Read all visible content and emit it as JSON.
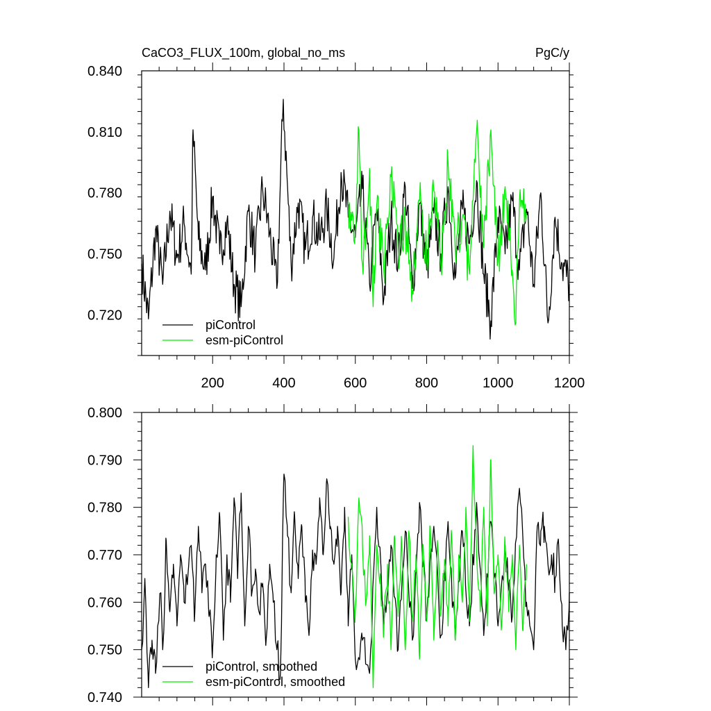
{
  "chart_data": [
    {
      "type": "line",
      "title": "CaCO3_FLUX_100m, global_no_ms",
      "units": "PgC/y",
      "xlim": [
        1,
        1200
      ],
      "ylim": [
        0.7,
        0.84
      ],
      "xticks": [
        200,
        400,
        600,
        800,
        1000,
        1200
      ],
      "xtick_labels": [
        "200",
        "400",
        "600",
        "800",
        "1000",
        "1200"
      ],
      "yticks": [
        0.72,
        0.75,
        0.78,
        0.81,
        0.84
      ],
      "ytick_labels": [
        "0.720",
        "0.750",
        "0.780",
        "0.810",
        "0.840"
      ],
      "legend": "bottom-left",
      "grid": false,
      "series": [
        {
          "name": "piControl",
          "color": "#000000",
          "x": [
            1,
            20,
            40,
            60,
            80,
            100,
            120,
            140,
            145,
            160,
            180,
            200,
            220,
            240,
            260,
            280,
            300,
            320,
            340,
            360,
            380,
            398,
            420,
            440,
            460,
            480,
            500,
            520,
            540,
            560,
            580,
            600,
            620,
            640,
            660,
            680,
            700,
            720,
            740,
            760,
            780,
            800,
            820,
            840,
            860,
            880,
            900,
            920,
            940,
            960,
            980,
            1000,
            1020,
            1040,
            1060,
            1080,
            1100,
            1120,
            1140,
            1160,
            1180,
            1200
          ],
          "y": [
            0.745,
            0.718,
            0.762,
            0.735,
            0.771,
            0.748,
            0.765,
            0.74,
            0.811,
            0.757,
            0.742,
            0.778,
            0.75,
            0.766,
            0.735,
            0.724,
            0.771,
            0.75,
            0.782,
            0.76,
            0.733,
            0.826,
            0.745,
            0.775,
            0.752,
            0.768,
            0.757,
            0.772,
            0.748,
            0.79,
            0.768,
            0.758,
            0.782,
            0.735,
            0.772,
            0.728,
            0.768,
            0.746,
            0.783,
            0.733,
            0.775,
            0.742,
            0.77,
            0.75,
            0.783,
            0.738,
            0.772,
            0.755,
            0.786,
            0.74,
            0.717,
            0.768,
            0.75,
            0.776,
            0.742,
            0.772,
            0.735,
            0.78,
            0.716,
            0.768,
            0.745,
            0.735
          ]
        },
        {
          "name": "esm-piControl",
          "color": "#00ee00",
          "x": [
            580,
            600,
            610,
            620,
            640,
            650,
            660,
            680,
            700,
            720,
            740,
            760,
            780,
            800,
            820,
            840,
            860,
            880,
            900,
            920,
            940,
            960,
            980,
            1000,
            1020,
            1040,
            1050,
            1060,
            1080
          ],
          "y": [
            0.776,
            0.762,
            0.811,
            0.745,
            0.792,
            0.724,
            0.774,
            0.742,
            0.788,
            0.752,
            0.765,
            0.732,
            0.776,
            0.748,
            0.781,
            0.744,
            0.795,
            0.752,
            0.768,
            0.74,
            0.81,
            0.753,
            0.811,
            0.746,
            0.783,
            0.742,
            0.716,
            0.776,
            0.77
          ]
        }
      ]
    },
    {
      "type": "line",
      "title": "",
      "xlim": [
        1,
        1200
      ],
      "ylim": [
        0.74,
        0.8
      ],
      "yticks": [
        0.74,
        0.75,
        0.76,
        0.77,
        0.78,
        0.79,
        0.8
      ],
      "ytick_labels": [
        "0.740",
        "0.750",
        "0.760",
        "0.770",
        "0.780",
        "0.790",
        "0.800"
      ],
      "legend": "bottom-left",
      "grid": false,
      "series": [
        {
          "name": "piControl, smoothed",
          "color": "#000000",
          "x": [
            1,
            10,
            20,
            30,
            40,
            55,
            60,
            70,
            80,
            90,
            100,
            110,
            120,
            130,
            140,
            150,
            160,
            170,
            180,
            190,
            200,
            210,
            220,
            230,
            240,
            250,
            260,
            270,
            280,
            290,
            300,
            310,
            320,
            330,
            340,
            350,
            360,
            370,
            380,
            390,
            400,
            410,
            420,
            430,
            440,
            450,
            460,
            470,
            480,
            490,
            500,
            510,
            520,
            530,
            540,
            550,
            560,
            570,
            580,
            590,
            600,
            620,
            640,
            660,
            680,
            700,
            720,
            740,
            760,
            780,
            800,
            820,
            840,
            860,
            880,
            900,
            920,
            940,
            960,
            980,
            1000,
            1020,
            1040,
            1060,
            1080,
            1100,
            1110,
            1120,
            1130,
            1140,
            1150,
            1160,
            1170,
            1180,
            1190,
            1200
          ],
          "y": [
            0.75,
            0.765,
            0.742,
            0.752,
            0.745,
            0.762,
            0.75,
            0.773,
            0.758,
            0.768,
            0.755,
            0.77,
            0.76,
            0.765,
            0.772,
            0.758,
            0.776,
            0.762,
            0.768,
            0.757,
            0.75,
            0.77,
            0.778,
            0.752,
            0.77,
            0.76,
            0.782,
            0.765,
            0.783,
            0.755,
            0.776,
            0.762,
            0.767,
            0.758,
            0.764,
            0.752,
            0.768,
            0.76,
            0.75,
            0.745,
            0.787,
            0.774,
            0.762,
            0.778,
            0.765,
            0.776,
            0.76,
            0.753,
            0.771,
            0.768,
            0.782,
            0.77,
            0.786,
            0.776,
            0.768,
            0.776,
            0.762,
            0.78,
            0.755,
            0.77,
            0.748,
            0.752,
            0.745,
            0.78,
            0.755,
            0.772,
            0.75,
            0.775,
            0.752,
            0.781,
            0.757,
            0.776,
            0.753,
            0.777,
            0.752,
            0.775,
            0.755,
            0.781,
            0.753,
            0.777,
            0.755,
            0.772,
            0.757,
            0.784,
            0.76,
            0.75,
            0.776,
            0.775,
            0.776,
            0.768,
            0.77,
            0.765,
            0.772,
            0.755,
            0.75,
            0.762
          ]
        },
        {
          "name": "esm-piControl, smoothed",
          "color": "#00ee00",
          "x": [
            580,
            590,
            600,
            610,
            620,
            630,
            640,
            650,
            660,
            670,
            680,
            690,
            700,
            710,
            720,
            730,
            740,
            750,
            760,
            770,
            780,
            790,
            800,
            810,
            820,
            830,
            840,
            850,
            860,
            870,
            880,
            890,
            900,
            910,
            920,
            930,
            940,
            950,
            960,
            970,
            980,
            990,
            1000,
            1010,
            1020,
            1030,
            1040,
            1050,
            1060,
            1070,
            1080
          ],
          "y": [
            0.778,
            0.768,
            0.758,
            0.782,
            0.772,
            0.76,
            0.774,
            0.742,
            0.772,
            0.766,
            0.754,
            0.768,
            0.75,
            0.774,
            0.757,
            0.772,
            0.75,
            0.775,
            0.756,
            0.77,
            0.748,
            0.772,
            0.756,
            0.776,
            0.752,
            0.773,
            0.758,
            0.769,
            0.755,
            0.774,
            0.752,
            0.77,
            0.76,
            0.78,
            0.756,
            0.793,
            0.77,
            0.758,
            0.78,
            0.755,
            0.79,
            0.762,
            0.77,
            0.755,
            0.772,
            0.758,
            0.77,
            0.75,
            0.772,
            0.754,
            0.768
          ]
        }
      ]
    }
  ]
}
